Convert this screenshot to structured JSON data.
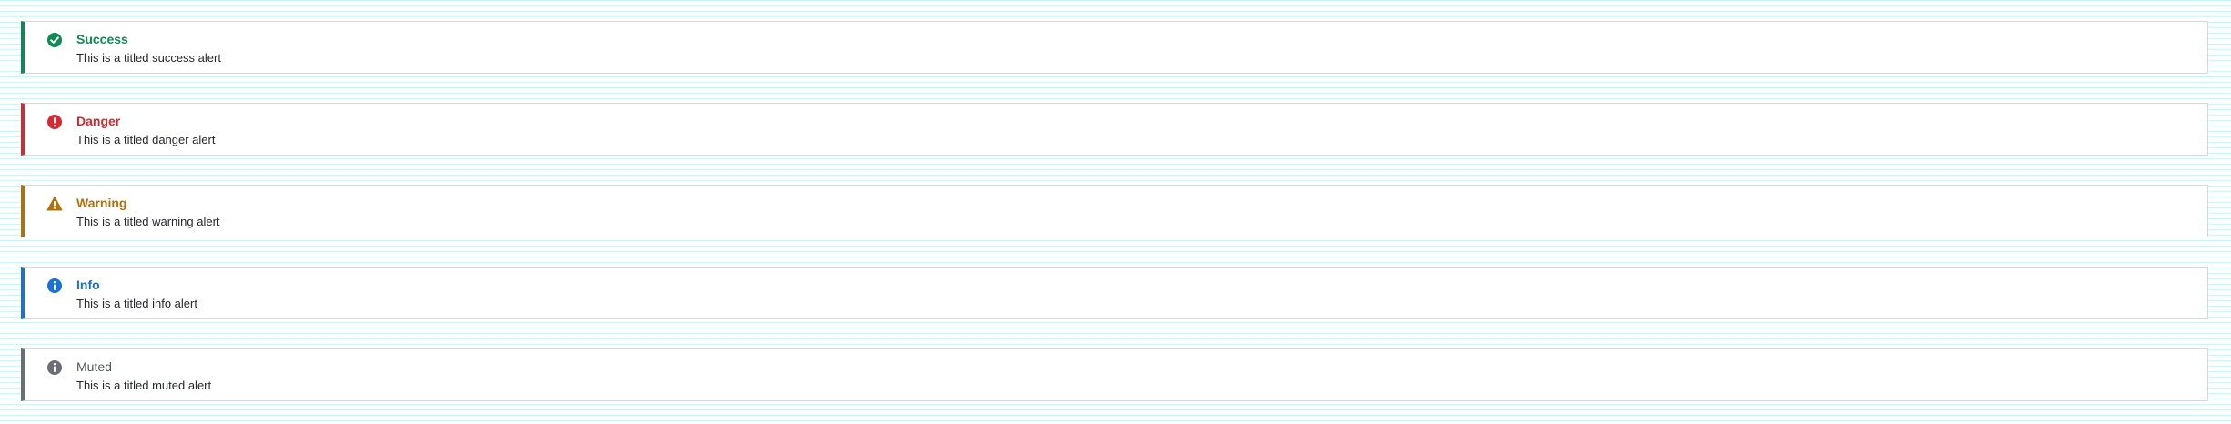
{
  "colors": {
    "success": "#0f8a55",
    "danger": "#d42a33",
    "warning": "#b2700b",
    "info": "#1b71d6",
    "muted": "#6b6e75",
    "muted_title": "#55585e",
    "text": "#26282c",
    "background_stripe": "#c9f3f3",
    "border": "#d3d8e0"
  },
  "alerts": [
    {
      "variant": "success",
      "icon": "check-circle-icon",
      "title": "Success",
      "message": "This is a titled success alert"
    },
    {
      "variant": "danger",
      "icon": "exclamation-circle-icon",
      "title": "Danger",
      "message": "This is a titled danger alert"
    },
    {
      "variant": "warning",
      "icon": "warning-triangle-icon",
      "title": "Warning",
      "message": "This is a titled warning alert"
    },
    {
      "variant": "info",
      "icon": "info-circle-icon",
      "title": "Info",
      "message": "This is a titled info alert"
    },
    {
      "variant": "muted",
      "icon": "info-circle-icon",
      "title": "Muted",
      "message": "This is a titled muted alert"
    }
  ]
}
